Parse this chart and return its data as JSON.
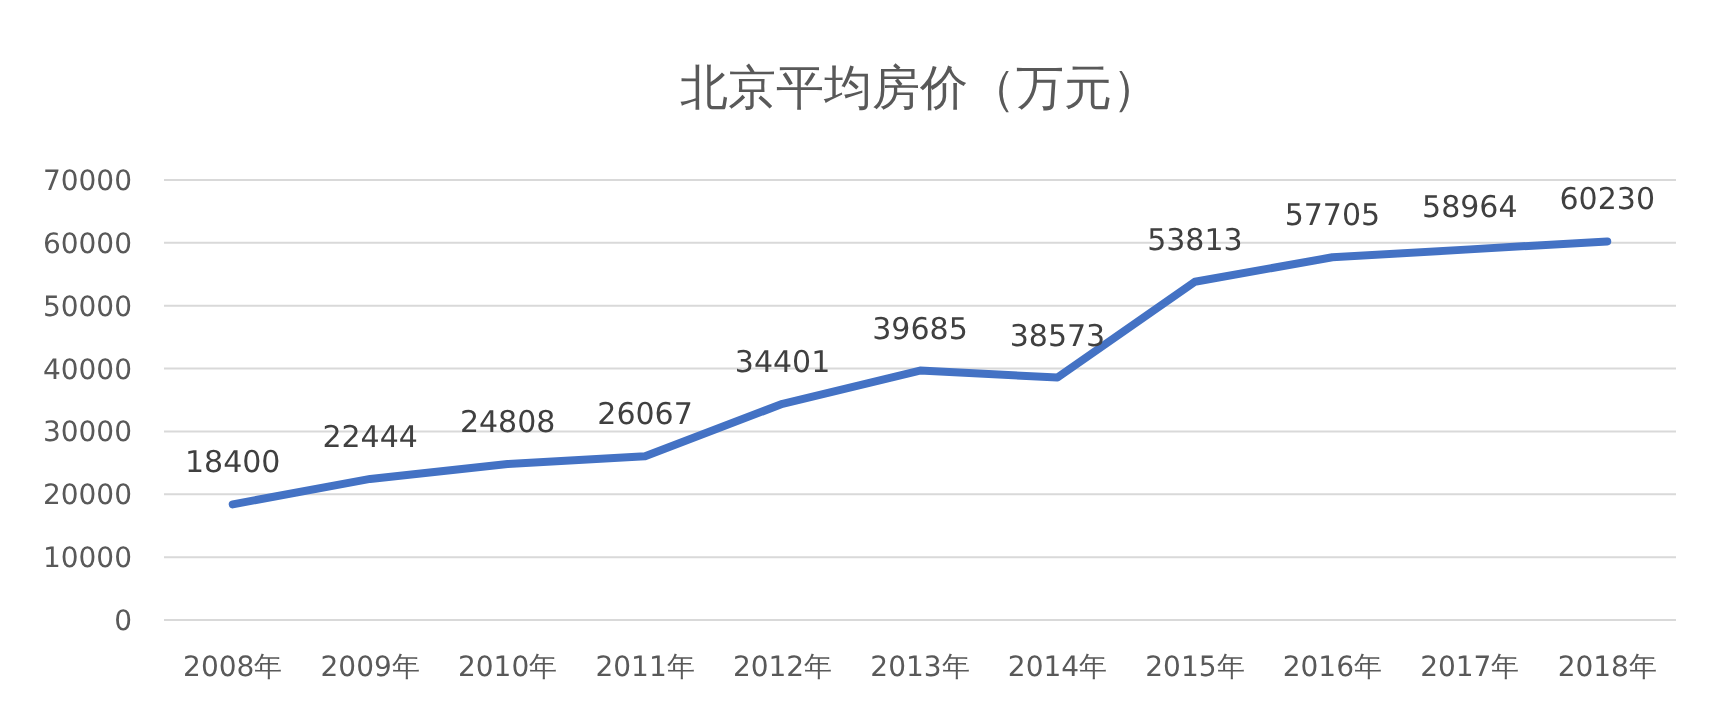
{
  "chart_data": {
    "type": "line",
    "title": "北京平均房价（万元）",
    "categories": [
      "2008年",
      "2009年",
      "2010年",
      "2011年",
      "2012年",
      "2013年",
      "2014年",
      "2015年",
      "2016年",
      "2017年",
      "2018年"
    ],
    "values": [
      18400,
      22444,
      24808,
      26067,
      34401,
      39685,
      38573,
      53813,
      57705,
      58964,
      60230
    ],
    "color": "#4472c4",
    "ylim": [
      0,
      70000
    ],
    "yticks": [
      0,
      10000,
      20000,
      30000,
      40000,
      50000,
      60000,
      70000
    ],
    "grid": "y",
    "data_labels": true,
    "marker": "none",
    "line_style": "solid"
  }
}
